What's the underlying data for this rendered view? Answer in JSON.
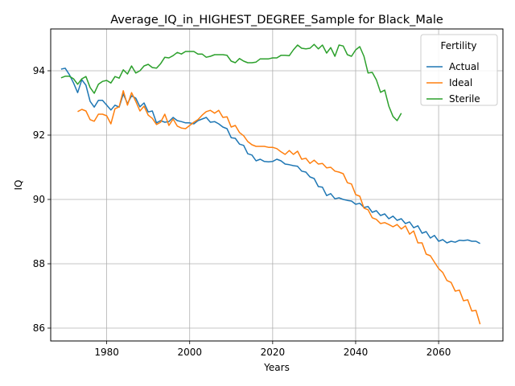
{
  "chart_data": {
    "type": "line",
    "title": "Average_IQ_in_HIGHEST_DEGREE_Sample for Black_Male",
    "xlabel": "Years",
    "ylabel": "IQ",
    "xlim": [
      1966.5,
      2075.5
    ],
    "ylim": [
      85.6,
      95.3
    ],
    "xticks": [
      1980,
      2000,
      2020,
      2040,
      2060
    ],
    "yticks": [
      86,
      88,
      90,
      92,
      94
    ],
    "grid": true,
    "legend": {
      "title": "Fertility",
      "placement": "top-right"
    },
    "series": [
      {
        "name": "Actual",
        "color": "#1f77b4",
        "points": [
          [
            1969,
            94.05
          ],
          [
            1970,
            94.08
          ],
          [
            1971,
            93.88
          ],
          [
            1972,
            93.62
          ],
          [
            1973,
            93.32
          ],
          [
            1974,
            93.72
          ],
          [
            1975,
            93.55
          ],
          [
            1976,
            93.05
          ],
          [
            1977,
            92.87
          ],
          [
            1978,
            93.08
          ],
          [
            1979,
            93.08
          ],
          [
            1980,
            92.93
          ],
          [
            1981,
            92.78
          ],
          [
            1982,
            92.93
          ],
          [
            1983,
            92.87
          ],
          [
            1984,
            93.28
          ],
          [
            1985,
            92.98
          ],
          [
            1986,
            93.22
          ],
          [
            1987,
            93.15
          ],
          [
            1988,
            92.88
          ],
          [
            1989,
            93.0
          ],
          [
            1990,
            92.72
          ],
          [
            1991,
            92.75
          ],
          [
            1992,
            92.38
          ],
          [
            1993,
            92.45
          ],
          [
            1994,
            92.4
          ],
          [
            1995,
            92.42
          ],
          [
            1996,
            92.55
          ],
          [
            1997,
            92.45
          ],
          [
            1998,
            92.42
          ],
          [
            1999,
            92.38
          ],
          [
            2000,
            92.38
          ],
          [
            2001,
            92.35
          ],
          [
            2002,
            92.45
          ],
          [
            2003,
            92.5
          ],
          [
            2004,
            92.55
          ],
          [
            2005,
            92.4
          ],
          [
            2006,
            92.42
          ],
          [
            2007,
            92.35
          ],
          [
            2008,
            92.25
          ],
          [
            2009,
            92.2
          ],
          [
            2010,
            91.92
          ],
          [
            2011,
            91.9
          ],
          [
            2012,
            91.72
          ],
          [
            2013,
            91.68
          ],
          [
            2014,
            91.42
          ],
          [
            2015,
            91.38
          ],
          [
            2016,
            91.2
          ],
          [
            2017,
            91.25
          ],
          [
            2018,
            91.18
          ],
          [
            2019,
            91.17
          ],
          [
            2020,
            91.18
          ],
          [
            2021,
            91.25
          ],
          [
            2022,
            91.2
          ],
          [
            2023,
            91.1
          ],
          [
            2024,
            91.08
          ],
          [
            2025,
            91.05
          ],
          [
            2026,
            91.03
          ],
          [
            2027,
            90.88
          ],
          [
            2028,
            90.85
          ],
          [
            2029,
            90.7
          ],
          [
            2030,
            90.65
          ],
          [
            2031,
            90.4
          ],
          [
            2032,
            90.38
          ],
          [
            2033,
            90.12
          ],
          [
            2034,
            90.18
          ],
          [
            2035,
            90.02
          ],
          [
            2036,
            90.05
          ],
          [
            2037,
            90.0
          ],
          [
            2038,
            89.97
          ],
          [
            2039,
            89.95
          ],
          [
            2040,
            89.85
          ],
          [
            2041,
            89.88
          ],
          [
            2042,
            89.75
          ],
          [
            2043,
            89.78
          ],
          [
            2044,
            89.6
          ],
          [
            2045,
            89.65
          ],
          [
            2046,
            89.5
          ],
          [
            2047,
            89.55
          ],
          [
            2048,
            89.4
          ],
          [
            2049,
            89.48
          ],
          [
            2050,
            89.35
          ],
          [
            2051,
            89.4
          ],
          [
            2052,
            89.25
          ],
          [
            2053,
            89.3
          ],
          [
            2054,
            89.12
          ],
          [
            2055,
            89.18
          ],
          [
            2056,
            88.95
          ],
          [
            2057,
            89.0
          ],
          [
            2058,
            88.8
          ],
          [
            2059,
            88.88
          ],
          [
            2060,
            88.7
          ],
          [
            2061,
            88.75
          ],
          [
            2062,
            88.65
          ],
          [
            2063,
            88.7
          ],
          [
            2064,
            88.67
          ],
          [
            2065,
            88.73
          ],
          [
            2066,
            88.72
          ],
          [
            2067,
            88.74
          ],
          [
            2068,
            88.7
          ],
          [
            2069,
            88.7
          ],
          [
            2070,
            88.63
          ]
        ]
      },
      {
        "name": "Ideal",
        "color": "#ff7f0e",
        "points": [
          [
            1973,
            92.73
          ],
          [
            1974,
            92.8
          ],
          [
            1975,
            92.75
          ],
          [
            1976,
            92.48
          ],
          [
            1977,
            92.43
          ],
          [
            1978,
            92.65
          ],
          [
            1979,
            92.65
          ],
          [
            1980,
            92.6
          ],
          [
            1981,
            92.35
          ],
          [
            1982,
            92.82
          ],
          [
            1983,
            92.88
          ],
          [
            1984,
            93.38
          ],
          [
            1985,
            92.93
          ],
          [
            1986,
            93.32
          ],
          [
            1987,
            93.05
          ],
          [
            1988,
            92.75
          ],
          [
            1989,
            92.9
          ],
          [
            1990,
            92.62
          ],
          [
            1991,
            92.52
          ],
          [
            1992,
            92.33
          ],
          [
            1993,
            92.4
          ],
          [
            1994,
            92.65
          ],
          [
            1995,
            92.3
          ],
          [
            1996,
            92.5
          ],
          [
            1997,
            92.28
          ],
          [
            1998,
            92.22
          ],
          [
            1999,
            92.2
          ],
          [
            2000,
            92.3
          ],
          [
            2001,
            92.4
          ],
          [
            2002,
            92.48
          ],
          [
            2003,
            92.62
          ],
          [
            2004,
            92.73
          ],
          [
            2005,
            92.77
          ],
          [
            2006,
            92.68
          ],
          [
            2007,
            92.77
          ],
          [
            2008,
            92.55
          ],
          [
            2009,
            92.57
          ],
          [
            2010,
            92.25
          ],
          [
            2011,
            92.3
          ],
          [
            2012,
            92.08
          ],
          [
            2013,
            91.98
          ],
          [
            2014,
            91.8
          ],
          [
            2015,
            91.7
          ],
          [
            2016,
            91.65
          ],
          [
            2017,
            91.65
          ],
          [
            2018,
            91.65
          ],
          [
            2019,
            91.62
          ],
          [
            2020,
            91.62
          ],
          [
            2021,
            91.58
          ],
          [
            2022,
            91.48
          ],
          [
            2023,
            91.4
          ],
          [
            2024,
            91.52
          ],
          [
            2025,
            91.4
          ],
          [
            2026,
            91.5
          ],
          [
            2027,
            91.25
          ],
          [
            2028,
            91.28
          ],
          [
            2029,
            91.12
          ],
          [
            2030,
            91.22
          ],
          [
            2031,
            91.1
          ],
          [
            2032,
            91.12
          ],
          [
            2033,
            90.98
          ],
          [
            2034,
            91.0
          ],
          [
            2035,
            90.88
          ],
          [
            2036,
            90.85
          ],
          [
            2037,
            90.8
          ],
          [
            2038,
            90.52
          ],
          [
            2039,
            90.48
          ],
          [
            2040,
            90.15
          ],
          [
            2041,
            90.1
          ],
          [
            2042,
            89.73
          ],
          [
            2043,
            89.68
          ],
          [
            2044,
            89.43
          ],
          [
            2045,
            89.38
          ],
          [
            2046,
            89.25
          ],
          [
            2047,
            89.28
          ],
          [
            2048,
            89.22
          ],
          [
            2049,
            89.15
          ],
          [
            2050,
            89.22
          ],
          [
            2051,
            89.08
          ],
          [
            2052,
            89.18
          ],
          [
            2053,
            88.92
          ],
          [
            2054,
            89.02
          ],
          [
            2055,
            88.65
          ],
          [
            2056,
            88.65
          ],
          [
            2057,
            88.3
          ],
          [
            2058,
            88.25
          ],
          [
            2059,
            88.05
          ],
          [
            2060,
            87.85
          ],
          [
            2061,
            87.73
          ],
          [
            2062,
            87.48
          ],
          [
            2063,
            87.42
          ],
          [
            2064,
            87.15
          ],
          [
            2065,
            87.18
          ],
          [
            2066,
            86.85
          ],
          [
            2067,
            86.88
          ],
          [
            2068,
            86.53
          ],
          [
            2069,
            86.55
          ],
          [
            2070,
            86.12
          ]
        ]
      },
      {
        "name": "Sterile",
        "color": "#2ca02c",
        "points": [
          [
            1969,
            93.78
          ],
          [
            1970,
            93.83
          ],
          [
            1971,
            93.83
          ],
          [
            1972,
            93.75
          ],
          [
            1973,
            93.58
          ],
          [
            1974,
            93.75
          ],
          [
            1975,
            93.82
          ],
          [
            1976,
            93.48
          ],
          [
            1977,
            93.3
          ],
          [
            1978,
            93.58
          ],
          [
            1979,
            93.67
          ],
          [
            1980,
            93.7
          ],
          [
            1981,
            93.62
          ],
          [
            1982,
            93.82
          ],
          [
            1983,
            93.77
          ],
          [
            1984,
            94.03
          ],
          [
            1985,
            93.9
          ],
          [
            1986,
            94.15
          ],
          [
            1987,
            93.93
          ],
          [
            1988,
            94.0
          ],
          [
            1989,
            94.15
          ],
          [
            1990,
            94.2
          ],
          [
            1991,
            94.1
          ],
          [
            1992,
            94.08
          ],
          [
            1993,
            94.22
          ],
          [
            1994,
            94.42
          ],
          [
            1995,
            94.4
          ],
          [
            1996,
            94.47
          ],
          [
            1997,
            94.57
          ],
          [
            1998,
            94.52
          ],
          [
            1999,
            94.6
          ],
          [
            2000,
            94.6
          ],
          [
            2001,
            94.6
          ],
          [
            2002,
            94.52
          ],
          [
            2003,
            94.52
          ],
          [
            2004,
            94.42
          ],
          [
            2005,
            94.45
          ],
          [
            2006,
            94.5
          ],
          [
            2007,
            94.5
          ],
          [
            2008,
            94.5
          ],
          [
            2009,
            94.48
          ],
          [
            2010,
            94.3
          ],
          [
            2011,
            94.25
          ],
          [
            2012,
            94.38
          ],
          [
            2013,
            94.3
          ],
          [
            2014,
            94.25
          ],
          [
            2015,
            94.25
          ],
          [
            2016,
            94.27
          ],
          [
            2017,
            94.37
          ],
          [
            2018,
            94.37
          ],
          [
            2019,
            94.37
          ],
          [
            2020,
            94.4
          ],
          [
            2021,
            94.4
          ],
          [
            2022,
            94.48
          ],
          [
            2023,
            94.48
          ],
          [
            2024,
            94.47
          ],
          [
            2025,
            94.65
          ],
          [
            2026,
            94.8
          ],
          [
            2027,
            94.7
          ],
          [
            2028,
            94.68
          ],
          [
            2029,
            94.7
          ],
          [
            2030,
            94.82
          ],
          [
            2031,
            94.68
          ],
          [
            2032,
            94.8
          ],
          [
            2033,
            94.55
          ],
          [
            2034,
            94.72
          ],
          [
            2035,
            94.45
          ],
          [
            2036,
            94.8
          ],
          [
            2037,
            94.77
          ],
          [
            2038,
            94.5
          ],
          [
            2039,
            94.45
          ],
          [
            2040,
            94.65
          ],
          [
            2041,
            94.75
          ],
          [
            2042,
            94.45
          ],
          [
            2043,
            93.93
          ],
          [
            2044,
            93.95
          ],
          [
            2045,
            93.72
          ],
          [
            2046,
            93.33
          ],
          [
            2047,
            93.4
          ],
          [
            2048,
            92.9
          ],
          [
            2049,
            92.58
          ],
          [
            2050,
            92.45
          ],
          [
            2051,
            92.68
          ]
        ]
      }
    ]
  }
}
